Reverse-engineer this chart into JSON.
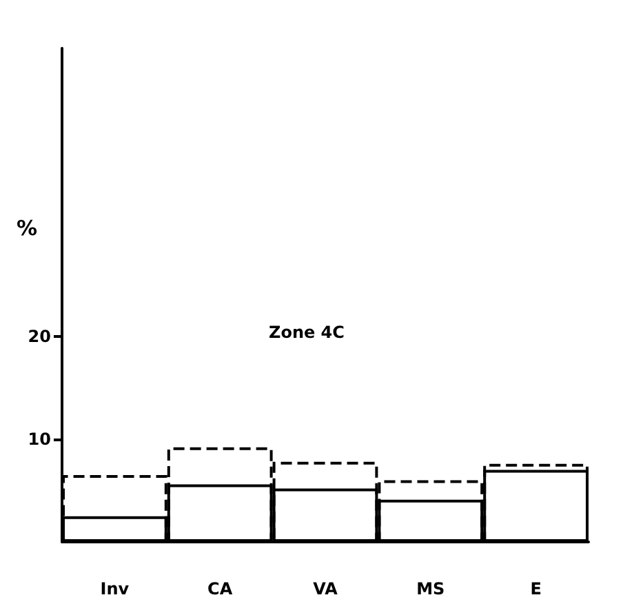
{
  "chart_data": {
    "type": "bar",
    "ylabel": "%",
    "annotations": [
      "Zone 4C"
    ],
    "categories": [
      "Inv",
      "CA",
      "VA",
      "MS",
      "E"
    ],
    "series": [
      {
        "color": "#000000",
        "line_style": "dashed",
        "values": [
          6.5,
          9.2,
          7.8,
          6.0,
          7.6
        ]
      },
      {
        "color": "#000000",
        "line_style": "solid",
        "values": [
          2.5,
          5.6,
          5.2,
          4.1,
          7.0
        ]
      }
    ],
    "ylim": [
      0,
      48
    ],
    "yticks": [
      10,
      20
    ],
    "grid": false
  }
}
